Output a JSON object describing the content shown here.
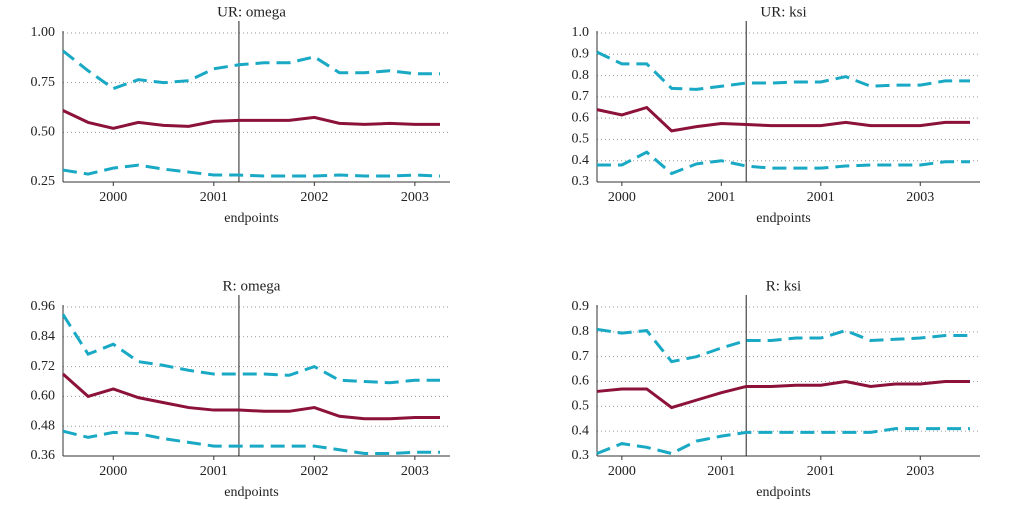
{
  "chart_data": [
    {
      "type": "line",
      "title": "UR: omega",
      "x_label": "endpoints",
      "categories": [
        null,
        null,
        "2000",
        null,
        null,
        null,
        "2001",
        null,
        null,
        null,
        "2002",
        null,
        null,
        null,
        "2003",
        null
      ],
      "vline": 7,
      "ylim": [
        0.25,
        1.0
      ],
      "yticks": [
        0.25,
        {
          "value": 0.5,
          "label": "0.50"
        },
        0.75,
        {
          "value": 1.0,
          "label": "1.00"
        }
      ],
      "grid": true,
      "series": [
        {
          "color": "#19a9c4",
          "style": "dashed",
          "values": [
            0.91,
            0.81,
            0.72,
            0.765,
            0.75,
            0.76,
            0.82,
            0.84,
            0.85,
            0.85,
            0.88,
            0.8,
            0.8,
            0.81,
            0.795,
            0.795
          ]
        },
        {
          "color": "#8c1239",
          "style": "solid",
          "values": [
            0.61,
            0.55,
            0.52,
            0.55,
            0.535,
            0.53,
            0.555,
            0.56,
            0.56,
            0.56,
            0.575,
            0.545,
            0.54,
            0.545,
            0.54,
            0.54
          ]
        },
        {
          "color": "#19a9c4",
          "style": "dashed",
          "values": [
            0.31,
            0.29,
            0.32,
            0.335,
            0.315,
            0.3,
            0.285,
            0.285,
            0.28,
            0.28,
            0.28,
            0.285,
            0.28,
            0.28,
            0.285,
            0.28
          ]
        }
      ]
    },
    {
      "type": "line",
      "title": "UR: ksi",
      "x_label": "endpoints",
      "categories": [
        null,
        "2000",
        null,
        null,
        null,
        "2001",
        null,
        null,
        null,
        "2001",
        null,
        null,
        null,
        "2003",
        null,
        null
      ],
      "vline": 6,
      "ylim": [
        0.3,
        1.0
      ],
      "yticks": [
        0.3,
        0.4,
        0.5,
        0.6,
        0.7,
        0.8,
        0.9,
        {
          "value": 1.0,
          "label": "1.0"
        }
      ],
      "grid": true,
      "series": [
        {
          "color": "#19a9c4",
          "style": "dashed",
          "values": [
            0.91,
            0.855,
            0.855,
            0.74,
            0.735,
            0.75,
            0.765,
            0.765,
            0.77,
            0.77,
            0.795,
            0.75,
            0.755,
            0.755,
            0.775,
            0.775
          ]
        },
        {
          "color": "#8c1239",
          "style": "solid",
          "values": [
            0.64,
            0.615,
            0.65,
            0.54,
            0.56,
            0.575,
            0.57,
            0.565,
            0.565,
            0.565,
            0.58,
            0.565,
            0.565,
            0.565,
            0.58,
            0.58
          ]
        },
        {
          "color": "#19a9c4",
          "style": "dashed",
          "values": [
            0.38,
            0.38,
            0.44,
            0.34,
            0.385,
            0.4,
            0.375,
            0.365,
            0.365,
            0.365,
            0.375,
            0.38,
            0.38,
            0.38,
            0.395,
            0.395
          ]
        }
      ]
    },
    {
      "type": "line",
      "title": "R: omega",
      "x_label": "endpoints",
      "categories": [
        null,
        null,
        "2000",
        null,
        null,
        null,
        "2001",
        null,
        null,
        null,
        "2002",
        null,
        null,
        null,
        "2003",
        null
      ],
      "vline": 7,
      "ylim": [
        0.36,
        0.96
      ],
      "yticks": [
        0.36,
        0.48,
        {
          "value": 0.6,
          "label": "0.60"
        },
        0.72,
        0.84,
        0.96
      ],
      "grid": true,
      "series": [
        {
          "color": "#19a9c4",
          "style": "dashed",
          "values": [
            0.93,
            0.77,
            0.81,
            0.74,
            0.725,
            0.705,
            0.69,
            0.69,
            0.69,
            0.685,
            0.72,
            0.665,
            0.66,
            0.655,
            0.665,
            0.665
          ]
        },
        {
          "color": "#8c1239",
          "style": "solid",
          "values": [
            0.69,
            0.6,
            0.63,
            0.595,
            0.575,
            0.555,
            0.545,
            0.545,
            0.54,
            0.54,
            0.555,
            0.52,
            0.51,
            0.51,
            0.515,
            0.515
          ]
        },
        {
          "color": "#19a9c4",
          "style": "dashed",
          "values": [
            0.46,
            0.435,
            0.455,
            0.45,
            0.43,
            0.415,
            0.4,
            0.4,
            0.4,
            0.4,
            0.4,
            0.385,
            0.37,
            0.37,
            0.375,
            0.375
          ]
        }
      ]
    },
    {
      "type": "line",
      "title": "R: ksi",
      "x_label": "endpoints",
      "categories": [
        null,
        "2000",
        null,
        null,
        null,
        "2001",
        null,
        null,
        null,
        "2001",
        null,
        null,
        null,
        "2003",
        null,
        null
      ],
      "vline": 6,
      "ylim": [
        0.3,
        0.9
      ],
      "yticks": [
        0.3,
        0.4,
        0.5,
        0.6,
        0.7,
        0.8,
        0.9
      ],
      "grid": true,
      "series": [
        {
          "color": "#19a9c4",
          "style": "dashed",
          "values": [
            0.81,
            0.795,
            0.805,
            0.68,
            0.7,
            0.735,
            0.765,
            0.765,
            0.775,
            0.775,
            0.805,
            0.765,
            0.77,
            0.775,
            0.785,
            0.785
          ]
        },
        {
          "color": "#8c1239",
          "style": "solid",
          "values": [
            0.56,
            0.57,
            0.57,
            0.495,
            0.525,
            0.555,
            0.58,
            0.58,
            0.585,
            0.585,
            0.6,
            0.58,
            0.59,
            0.59,
            0.6,
            0.6
          ]
        },
        {
          "color": "#19a9c4",
          "style": "dashed",
          "values": [
            0.31,
            0.35,
            0.335,
            0.31,
            0.36,
            0.38,
            0.395,
            0.395,
            0.395,
            0.395,
            0.395,
            0.395,
            0.41,
            0.41,
            0.41,
            0.41
          ]
        }
      ]
    }
  ]
}
